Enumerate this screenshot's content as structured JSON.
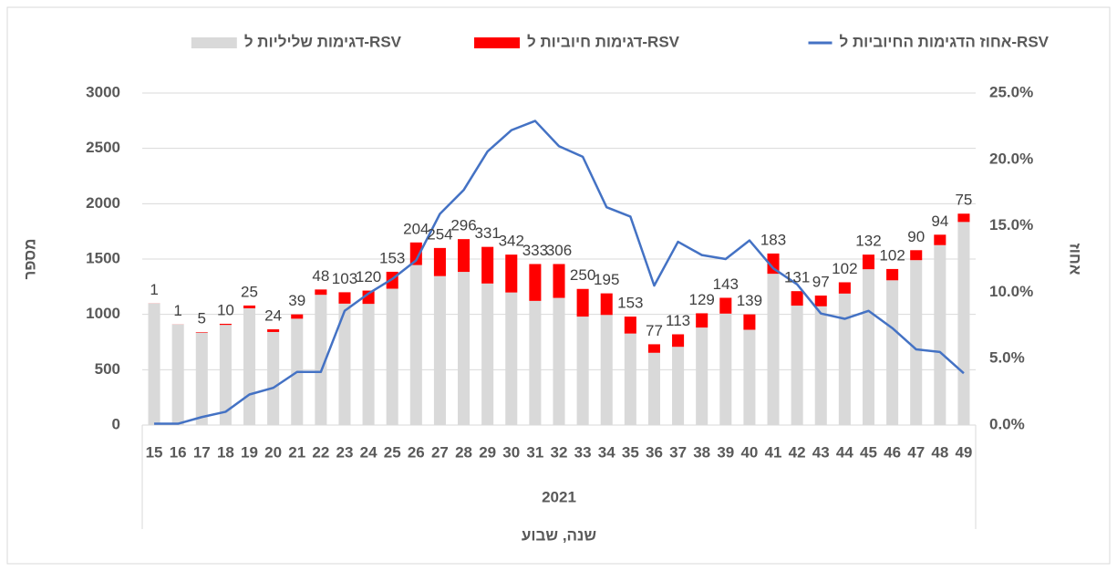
{
  "chart_data": {
    "type": "bar",
    "categories": [
      "15",
      "16",
      "17",
      "18",
      "19",
      "20",
      "21",
      "22",
      "23",
      "24",
      "25",
      "26",
      "27",
      "28",
      "29",
      "30",
      "31",
      "32",
      "33",
      "34",
      "35",
      "36",
      "37",
      "38",
      "39",
      "40",
      "41",
      "42",
      "43",
      "44",
      "45",
      "46",
      "47",
      "48",
      "49"
    ],
    "group_label": "2021",
    "x_label": "שנה, שבוע",
    "y_label": "מספר",
    "y2_label": "אחוז",
    "ylim": [
      0,
      3000
    ],
    "yticks": [
      0,
      500,
      1000,
      1500,
      2000,
      2500,
      3000
    ],
    "y2lim": [
      0,
      25
    ],
    "y2ticks": [
      {
        "value": 0,
        "label": "0.0%"
      },
      {
        "value": 5,
        "label": "5.0%"
      },
      {
        "value": 10,
        "label": "10.0%"
      },
      {
        "value": 15,
        "label": "15.0%"
      },
      {
        "value": 20,
        "label": "20.0%"
      },
      {
        "value": 25,
        "label": "25.0%"
      }
    ],
    "grid": true,
    "series": [
      {
        "name": "דגימות שליליות ל-RSV",
        "color": "#d9d9d9",
        "type": "bar",
        "values": [
          1099,
          909,
          835,
          905,
          1055,
          841,
          961,
          1177,
          1097,
          1095,
          1232,
          1446,
          1346,
          1384,
          1279,
          1198,
          1122,
          1149,
          980,
          995,
          827,
          653,
          707,
          881,
          1007,
          861,
          1367,
          1079,
          1073,
          1188,
          1408,
          1308,
          1490,
          1626,
          1835
        ]
      },
      {
        "name": "דגימות חיוביות ל-RSV",
        "color": "#ff0000",
        "type": "bar",
        "labels": true,
        "values": [
          1,
          1,
          5,
          10,
          25,
          24,
          39,
          48,
          103,
          120,
          153,
          204,
          254,
          296,
          331,
          342,
          333,
          306,
          250,
          195,
          153,
          77,
          113,
          129,
          143,
          139,
          183,
          131,
          97,
          102,
          132,
          102,
          90,
          94,
          75
        ]
      },
      {
        "name": "אחוז הדגימות החיוביות ל-RSV",
        "color": "#4472c4",
        "type": "line",
        "axis": "y2",
        "values": [
          0.1,
          0.1,
          0.6,
          1.0,
          2.3,
          2.8,
          4.0,
          4.0,
          8.6,
          9.9,
          11.0,
          12.4,
          15.9,
          17.7,
          20.6,
          22.2,
          22.9,
          21.0,
          20.2,
          16.4,
          15.7,
          10.5,
          13.8,
          12.8,
          12.5,
          13.9,
          11.8,
          10.6,
          8.4,
          8.0,
          8.6,
          7.3,
          5.7,
          5.5,
          3.9
        ]
      }
    ]
  }
}
